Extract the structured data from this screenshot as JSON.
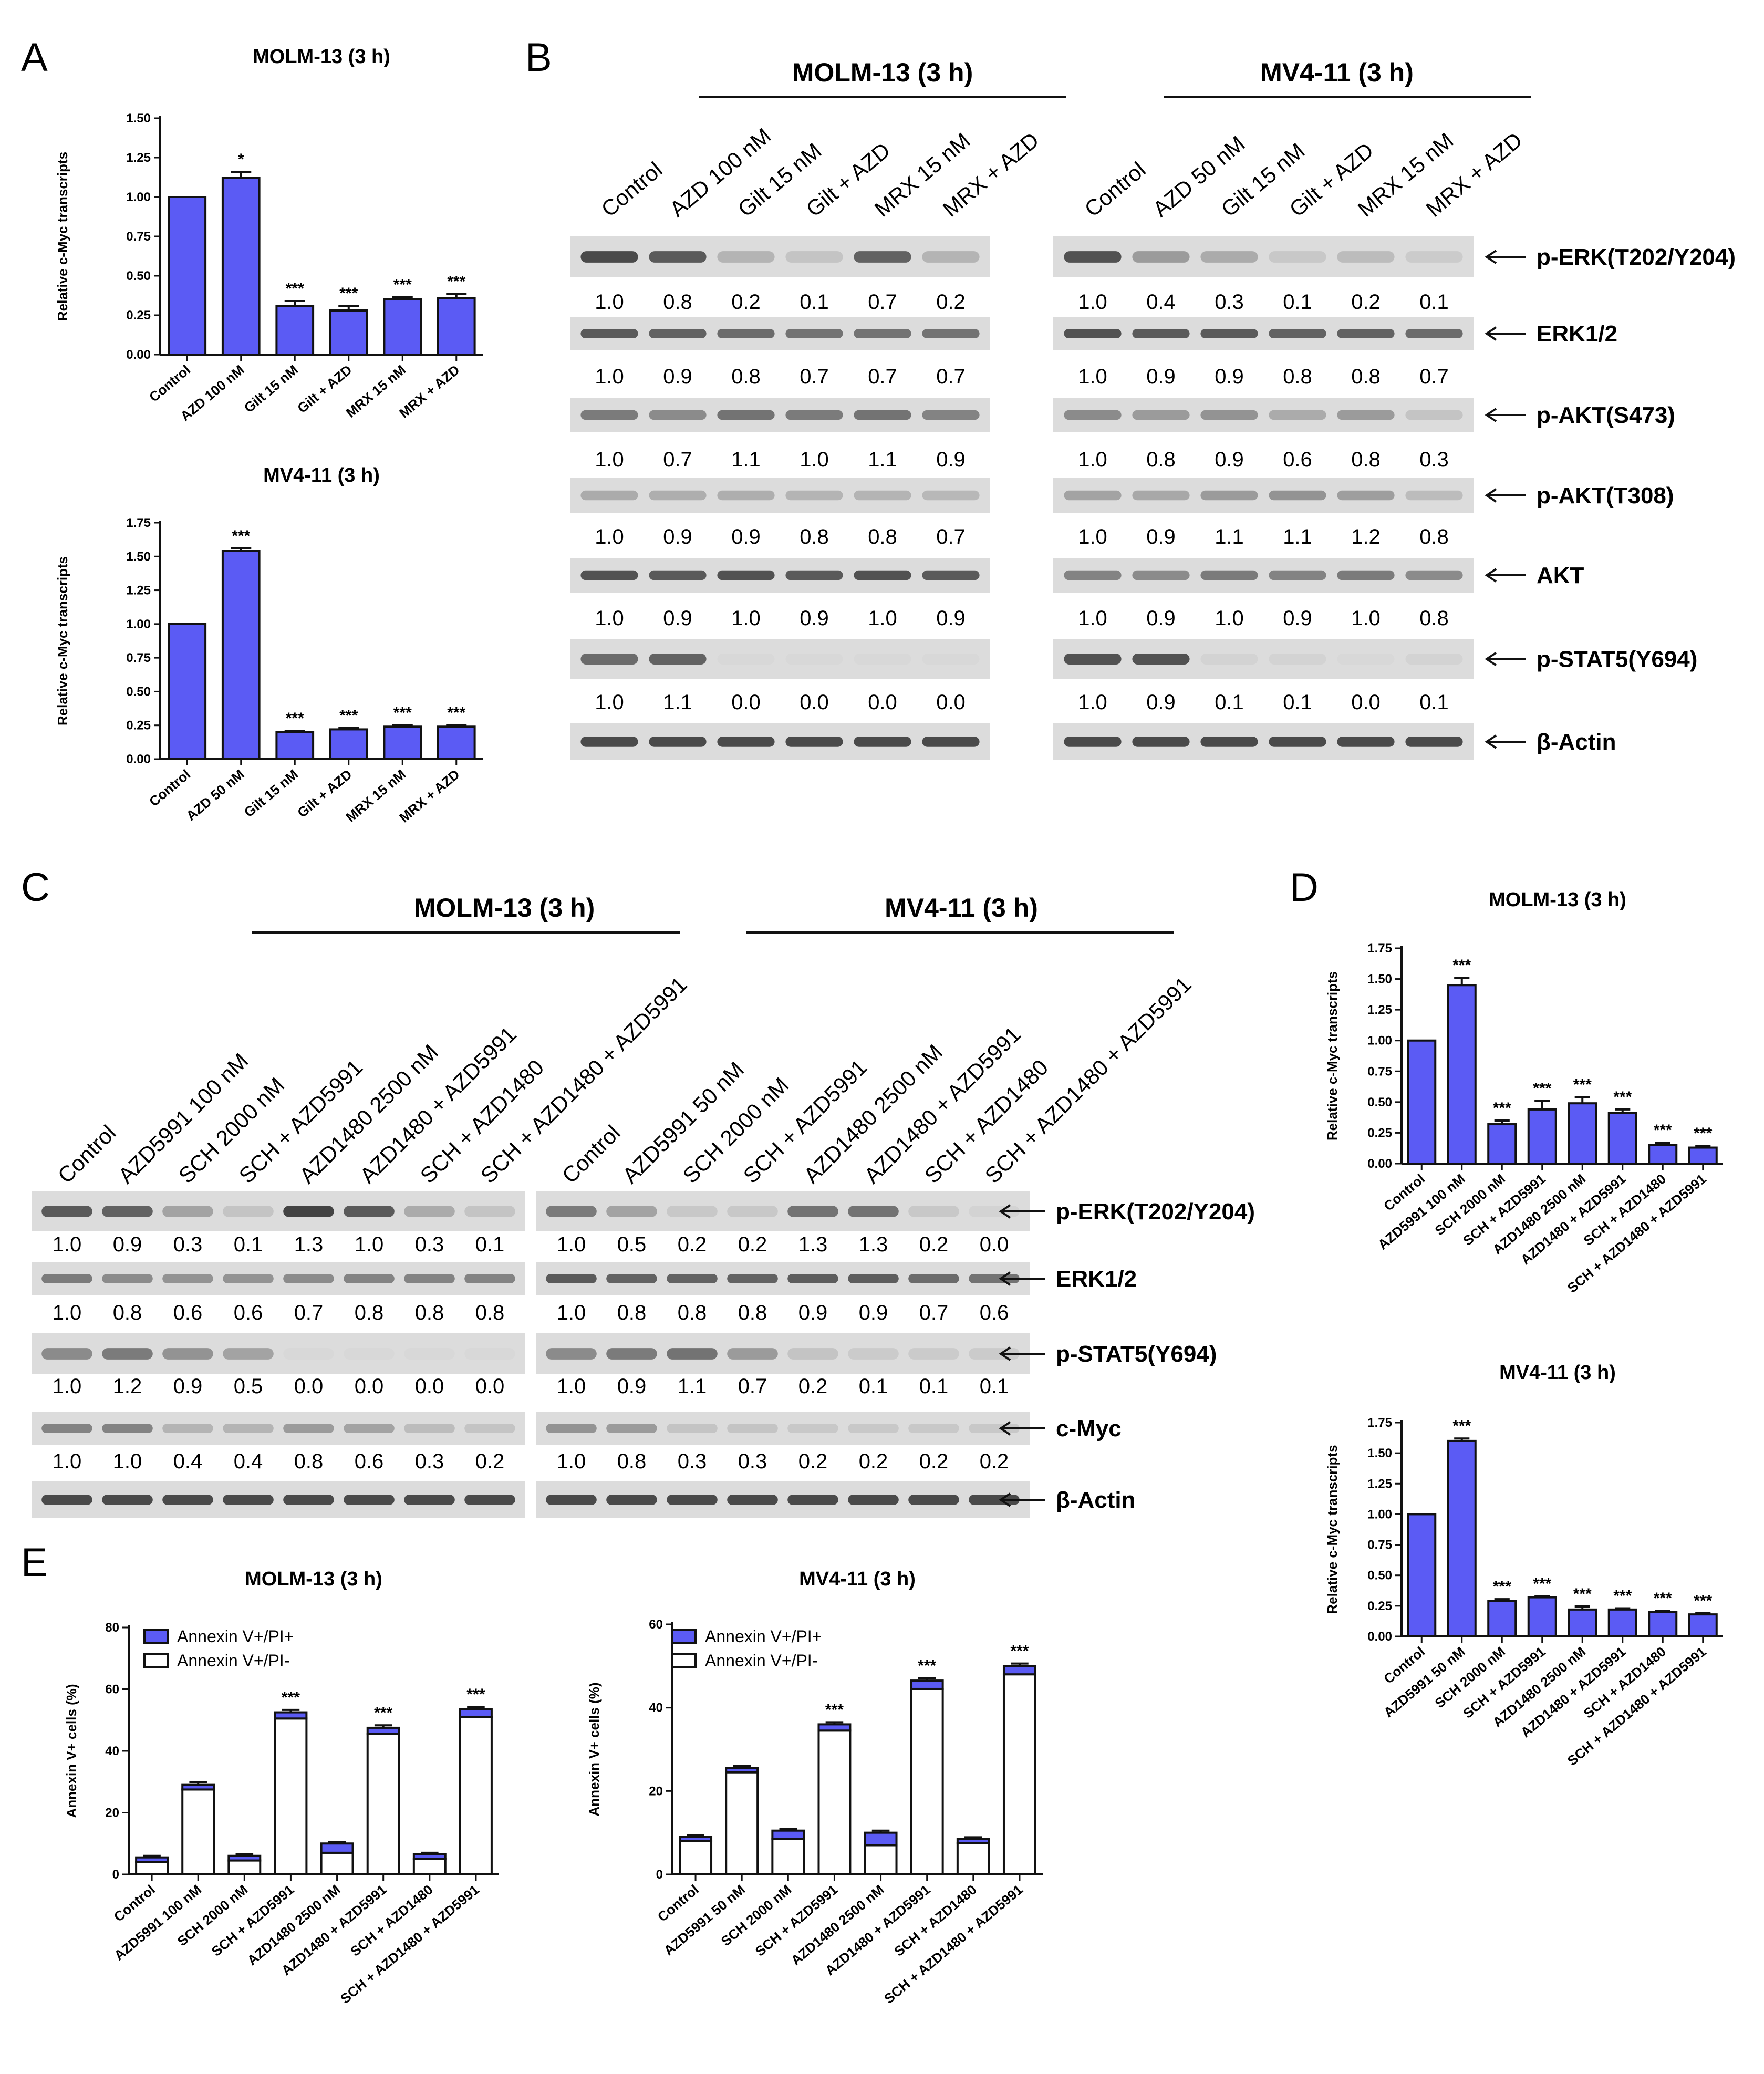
{
  "colors": {
    "bar": "#5b5bf4",
    "axis": "#111111",
    "blot_bg": "#dcdcdc",
    "band": "#3a3a3a",
    "white_bar": "#ffffff"
  },
  "panel_letters": {
    "a": "A",
    "b": "B",
    "c": "C",
    "d": "D",
    "e": "E"
  },
  "chart_data": [
    {
      "id": "A1",
      "panel": "A",
      "type": "bar",
      "title": "MOLM-13 (3 h)",
      "ylabel": "Relative c-Myc transcripts",
      "ylim": [
        0,
        1.5
      ],
      "yticks": [
        "0.00",
        "0.25",
        "0.50",
        "0.75",
        "1.00",
        "1.25",
        "1.50"
      ],
      "categories": [
        "Control",
        "AZD 100 nM",
        "Gilt 15 nM",
        "Gilt + AZD",
        "MRX 15 nM",
        "MRX + AZD"
      ],
      "values": [
        1.0,
        1.12,
        0.31,
        0.28,
        0.35,
        0.36
      ],
      "errors": [
        0,
        0.04,
        0.03,
        0.03,
        0.015,
        0.025
      ],
      "significance": [
        "",
        "*",
        "***",
        "***",
        "***",
        "***"
      ]
    },
    {
      "id": "A2",
      "panel": "A",
      "type": "bar",
      "title": "MV4-11 (3 h)",
      "ylabel": "Relative c-Myc transcripts",
      "ylim": [
        0,
        1.75
      ],
      "yticks": [
        "0.00",
        "0.25",
        "0.50",
        "0.75",
        "1.00",
        "1.25",
        "1.50",
        "1.75"
      ],
      "categories": [
        "Control",
        "AZD 50 nM",
        "Gilt 15 nM",
        "Gilt + AZD",
        "MRX 15 nM",
        "MRX + AZD"
      ],
      "values": [
        1.0,
        1.54,
        0.2,
        0.22,
        0.24,
        0.24
      ],
      "errors": [
        0,
        0.02,
        0.01,
        0.01,
        0.01,
        0.01
      ],
      "significance": [
        "",
        "***",
        "***",
        "***",
        "***",
        "***"
      ]
    },
    {
      "id": "D1",
      "panel": "D",
      "type": "bar",
      "title": "MOLM-13 (3 h)",
      "ylabel": "Relative c-Myc transcripts",
      "ylim": [
        0,
        1.75
      ],
      "yticks": [
        "0.00",
        "0.25",
        "0.50",
        "0.75",
        "1.00",
        "1.25",
        "1.50",
        "1.75"
      ],
      "categories": [
        "Control",
        "AZD5991 100 nM",
        "SCH 2000 nM",
        "SCH + AZD5991",
        "AZD1480 2500 nM",
        "AZD1480 + AZD5991",
        "SCH + AZD1480",
        "SCH + AZD1480 + AZD5991"
      ],
      "values": [
        1.0,
        1.45,
        0.32,
        0.44,
        0.49,
        0.41,
        0.15,
        0.13
      ],
      "errors": [
        0,
        0.06,
        0.03,
        0.07,
        0.05,
        0.03,
        0.02,
        0.015
      ],
      "significance": [
        "",
        "***",
        "***",
        "***",
        "***",
        "***",
        "***",
        "***"
      ]
    },
    {
      "id": "D2",
      "panel": "D",
      "type": "bar",
      "title": "MV4-11 (3 h)",
      "ylabel": "Relative c-Myc transcripts",
      "ylim": [
        0,
        1.75
      ],
      "yticks": [
        "0.00",
        "0.25",
        "0.50",
        "0.75",
        "1.00",
        "1.25",
        "1.50",
        "1.75"
      ],
      "categories": [
        "Control",
        "AZD5991 50 nM",
        "SCH 2000 nM",
        "SCH + AZD5991",
        "AZD1480 2500 nM",
        "AZD1480 + AZD5991",
        "SCH + AZD1480",
        "SCH + AZD1480 + AZD5991"
      ],
      "values": [
        1.0,
        1.6,
        0.29,
        0.32,
        0.22,
        0.22,
        0.2,
        0.18
      ],
      "errors": [
        0,
        0.02,
        0.015,
        0.01,
        0.025,
        0.01,
        0.01,
        0.01
      ],
      "significance": [
        "",
        "***",
        "***",
        "***",
        "***",
        "***",
        "***",
        "***"
      ]
    },
    {
      "id": "E1",
      "panel": "E",
      "type": "stacked-bar",
      "title": "MOLM-13 (3 h)",
      "ylabel": "Annexin V+ cells (%)",
      "ylim": [
        0,
        80
      ],
      "yticks": [
        "0",
        "20",
        "40",
        "60",
        "80"
      ],
      "legend": [
        "Annexin V+/PI+",
        "Annexin V+/PI-"
      ],
      "categories": [
        "Control",
        "AZD5991 100 nM",
        "SCH 2000 nM",
        "SCH + AZD5991",
        "AZD1480 2500 nM",
        "AZD1480 + AZD5991",
        "SCH + AZD1480",
        "SCH + AZD1480 + AZD5991"
      ],
      "series": [
        {
          "name": "Annexin V+/PI+",
          "values": [
            1.5,
            1.5,
            1.5,
            2.0,
            3.0,
            2.0,
            1.5,
            2.5
          ]
        },
        {
          "name": "Annexin V+/PI-",
          "values": [
            4.0,
            27.5,
            4.5,
            50.5,
            7.0,
            45.5,
            5.0,
            51.0
          ]
        }
      ],
      "errors": [
        0.5,
        0.8,
        0.5,
        0.8,
        0.5,
        0.8,
        0.5,
        0.8
      ],
      "significance": [
        "",
        "",
        "",
        "***",
        "",
        "***",
        "",
        "***"
      ]
    },
    {
      "id": "E2",
      "panel": "E",
      "type": "stacked-bar",
      "title": "MV4-11 (3 h)",
      "ylabel": "Annexin V+ cells (%)",
      "ylim": [
        0,
        60
      ],
      "yticks": [
        "0",
        "20",
        "40",
        "60"
      ],
      "legend": [
        "Annexin V+/PI+",
        "Annexin V+/PI-"
      ],
      "categories": [
        "Control",
        "AZD5991 50 nM",
        "SCH 2000 nM",
        "SCH + AZD5991",
        "AZD1480 2500 nM",
        "AZD1480 + AZD5991",
        "SCH + AZD1480",
        "SCH + AZD1480 + AZD5991"
      ],
      "series": [
        {
          "name": "Annexin V+/PI+",
          "values": [
            1.0,
            1.0,
            2.0,
            1.5,
            3.0,
            2.0,
            1.0,
            2.0
          ]
        },
        {
          "name": "Annexin V+/PI-",
          "values": [
            8.0,
            24.5,
            8.5,
            34.5,
            7.0,
            44.5,
            7.5,
            48.0
          ]
        }
      ],
      "errors": [
        0.4,
        0.5,
        0.4,
        0.5,
        0.5,
        0.6,
        0.4,
        0.6
      ],
      "significance": [
        "",
        "",
        "",
        "***",
        "",
        "***",
        "",
        "***"
      ]
    }
  ],
  "blots": {
    "B": {
      "groups": [
        {
          "title": "MOLM-13 (3 h)",
          "lanes": [
            "Control",
            "AZD 100 nM",
            "Gilt 15 nM",
            "Gilt + AZD",
            "MRX 15 nM",
            "MRX + AZD"
          ],
          "quant": [
            [
              "1.0",
              "0.8",
              "0.2",
              "0.1",
              "0.7",
              "0.2"
            ],
            [
              "1.0",
              "0.9",
              "0.8",
              "0.7",
              "0.7",
              "0.7"
            ],
            [
              "1.0",
              "0.7",
              "1.1",
              "1.0",
              "1.1",
              "0.9"
            ],
            [
              "1.0",
              "0.9",
              "0.9",
              "0.8",
              "0.8",
              "0.7"
            ],
            [
              "1.0",
              "0.9",
              "1.0",
              "0.9",
              "1.0",
              "0.9"
            ],
            [
              "1.0",
              "1.1",
              "0.0",
              "0.0",
              "0.0",
              "0.0"
            ]
          ],
          "intensity": [
            [
              0.9,
              0.8,
              0.25,
              0.15,
              0.75,
              0.25
            ],
            [
              0.8,
              0.75,
              0.7,
              0.65,
              0.65,
              0.65
            ],
            [
              0.6,
              0.5,
              0.65,
              0.6,
              0.65,
              0.55
            ],
            [
              0.3,
              0.28,
              0.28,
              0.25,
              0.25,
              0.22
            ],
            [
              0.85,
              0.8,
              0.85,
              0.8,
              0.85,
              0.8
            ],
            [
              0.7,
              0.75,
              0.02,
              0.02,
              0.02,
              0.02
            ]
          ]
        },
        {
          "title": "MV4-11 (3 h)",
          "lanes": [
            "Control",
            "AZD 50 nM",
            "Gilt 15 nM",
            "Gilt + AZD",
            "MRX 15 nM",
            "MRX + AZD"
          ],
          "quant": [
            [
              "1.0",
              "0.4",
              "0.3",
              "0.1",
              "0.2",
              "0.1"
            ],
            [
              "1.0",
              "0.9",
              "0.9",
              "0.8",
              "0.8",
              "0.7"
            ],
            [
              "1.0",
              "0.8",
              "0.9",
              "0.6",
              "0.8",
              "0.3"
            ],
            [
              "1.0",
              "0.9",
              "1.1",
              "1.1",
              "1.2",
              "0.8"
            ],
            [
              "1.0",
              "0.9",
              "1.0",
              "0.9",
              "1.0",
              "0.8"
            ],
            [
              "1.0",
              "0.9",
              "0.1",
              "0.1",
              "0.0",
              "0.1"
            ]
          ],
          "intensity": [
            [
              0.85,
              0.4,
              0.3,
              0.12,
              0.2,
              0.1
            ],
            [
              0.85,
              0.8,
              0.8,
              0.75,
              0.75,
              0.7
            ],
            [
              0.5,
              0.4,
              0.45,
              0.3,
              0.4,
              0.15
            ],
            [
              0.35,
              0.32,
              0.4,
              0.45,
              0.38,
              0.2
            ],
            [
              0.55,
              0.5,
              0.6,
              0.55,
              0.6,
              0.5
            ],
            [
              0.85,
              0.85,
              0.05,
              0.05,
              0.02,
              0.05
            ]
          ]
        }
      ],
      "markers": [
        "p-ERK(T202/Y204)",
        "ERK1/2",
        "p-AKT(S473)",
        "p-AKT(T308)",
        "AKT",
        "p-STAT5(Y694)",
        "β-Actin"
      ]
    },
    "C": {
      "groups": [
        {
          "title": "MOLM-13 (3 h)",
          "lanes": [
            "Control",
            "AZD5991 100 nM",
            "SCH 2000 nM",
            "SCH + AZD5991",
            "AZD1480 2500 nM",
            "AZD1480 + AZD5991",
            "SCH + AZD1480",
            "SCH + AZD1480 + AZD5991"
          ],
          "quant": [
            [
              "1.0",
              "0.9",
              "0.3",
              "0.1",
              "1.3",
              "1.0",
              "0.3",
              "0.1"
            ],
            [
              "1.0",
              "0.8",
              "0.6",
              "0.6",
              "0.7",
              "0.8",
              "0.8",
              "0.8"
            ],
            [
              "1.0",
              "1.2",
              "0.9",
              "0.5",
              "0.0",
              "0.0",
              "0.0",
              "0.0"
            ],
            [
              "1.0",
              "1.0",
              "0.4",
              "0.4",
              "0.8",
              "0.6",
              "0.3",
              "0.2"
            ]
          ],
          "intensity": [
            [
              0.8,
              0.75,
              0.35,
              0.15,
              0.95,
              0.8,
              0.3,
              0.15
            ],
            [
              0.6,
              0.5,
              0.45,
              0.45,
              0.5,
              0.55,
              0.55,
              0.55
            ],
            [
              0.5,
              0.6,
              0.45,
              0.35,
              0.02,
              0.02,
              0.02,
              0.02
            ],
            [
              0.55,
              0.55,
              0.25,
              0.25,
              0.4,
              0.35,
              0.2,
              0.15
            ]
          ]
        },
        {
          "title": "MV4-11 (3 h)",
          "lanes": [
            "Control",
            "AZD5991 50 nM",
            "SCH 2000 nM",
            "SCH + AZD5991",
            "AZD1480 2500 nM",
            "AZD1480 + AZD5991",
            "SCH + AZD1480",
            "SCH + AZD1480 + AZD5991"
          ],
          "quant": [
            [
              "1.0",
              "0.5",
              "0.2",
              "0.2",
              "1.3",
              "1.3",
              "0.2",
              "0.0"
            ],
            [
              "1.0",
              "0.8",
              "0.8",
              "0.8",
              "0.9",
              "0.9",
              "0.7",
              "0.6"
            ],
            [
              "1.0",
              "0.9",
              "1.1",
              "0.7",
              "0.2",
              "0.1",
              "0.1",
              "0.1"
            ],
            [
              "1.0",
              "0.8",
              "0.3",
              "0.3",
              "0.2",
              "0.2",
              "0.2",
              "0.2"
            ]
          ],
          "intensity": [
            [
              0.6,
              0.35,
              0.12,
              0.12,
              0.65,
              0.65,
              0.12,
              0.05
            ],
            [
              0.8,
              0.75,
              0.75,
              0.75,
              0.78,
              0.78,
              0.7,
              0.65
            ],
            [
              0.5,
              0.6,
              0.65,
              0.4,
              0.15,
              0.1,
              0.1,
              0.1
            ],
            [
              0.45,
              0.4,
              0.15,
              0.15,
              0.12,
              0.12,
              0.12,
              0.12
            ]
          ]
        }
      ],
      "markers": [
        "p-ERK(T202/Y204)",
        "ERK1/2",
        "p-STAT5(Y694)",
        "c-Myc",
        "β-Actin"
      ]
    }
  }
}
